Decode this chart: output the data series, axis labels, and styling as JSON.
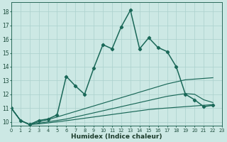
{
  "xlabel": "Humidex (Indice chaleur)",
  "bg_color": "#cce8e4",
  "grid_color": "#aad0cc",
  "line_color": "#1a6858",
  "xlim": [
    0,
    23
  ],
  "ylim": [
    9.7,
    18.7
  ],
  "xtick_vals": [
    0,
    1,
    2,
    3,
    4,
    5,
    6,
    7,
    8,
    9,
    10,
    11,
    12,
    13,
    14,
    15,
    16,
    17,
    18,
    19,
    20,
    21,
    22,
    23
  ],
  "ytick_vals": [
    10,
    11,
    12,
    13,
    14,
    15,
    16,
    17,
    18
  ],
  "series_main": {
    "x": [
      0,
      1,
      2,
      3,
      4,
      5,
      6,
      7,
      8,
      9,
      10,
      11,
      12,
      13,
      14,
      15,
      16,
      17,
      18,
      19,
      20,
      21,
      22
    ],
    "y": [
      11.0,
      10.1,
      9.8,
      10.1,
      10.2,
      10.5,
      13.3,
      12.6,
      12.0,
      13.9,
      15.6,
      15.3,
      16.9,
      18.1,
      15.3,
      16.1,
      15.4,
      15.1,
      14.0,
      12.0,
      11.6,
      11.1,
      11.2
    ]
  },
  "series_smooth": [
    {
      "x": [
        0,
        1,
        2,
        3,
        4,
        5,
        6,
        7,
        8,
        9,
        10,
        11,
        12,
        13,
        14,
        15,
        16,
        17,
        18,
        19,
        20,
        21,
        22
      ],
      "y": [
        11.0,
        10.1,
        9.8,
        10.0,
        10.15,
        10.35,
        10.55,
        10.75,
        10.95,
        11.15,
        11.35,
        11.55,
        11.75,
        11.95,
        12.15,
        12.35,
        12.55,
        12.75,
        12.9,
        13.05,
        13.1,
        13.15,
        13.2
      ]
    },
    {
      "x": [
        0,
        1,
        2,
        3,
        4,
        5,
        6,
        7,
        8,
        9,
        10,
        11,
        12,
        13,
        14,
        15,
        16,
        17,
        18,
        19,
        20,
        21,
        22
      ],
      "y": [
        11.0,
        10.1,
        9.8,
        9.9,
        10.0,
        10.1,
        10.2,
        10.35,
        10.5,
        10.65,
        10.8,
        10.95,
        11.1,
        11.25,
        11.4,
        11.55,
        11.7,
        11.85,
        11.95,
        12.05,
        12.0,
        11.6,
        11.4
      ]
    },
    {
      "x": [
        0,
        1,
        2,
        3,
        4,
        5,
        6,
        7,
        8,
        9,
        10,
        11,
        12,
        13,
        14,
        15,
        16,
        17,
        18,
        19,
        20,
        21,
        22
      ],
      "y": [
        11.0,
        10.1,
        9.8,
        9.85,
        9.92,
        10.0,
        10.08,
        10.17,
        10.26,
        10.35,
        10.44,
        10.53,
        10.62,
        10.71,
        10.8,
        10.89,
        10.95,
        11.0,
        11.05,
        11.1,
        11.15,
        11.2,
        11.25
      ]
    }
  ]
}
